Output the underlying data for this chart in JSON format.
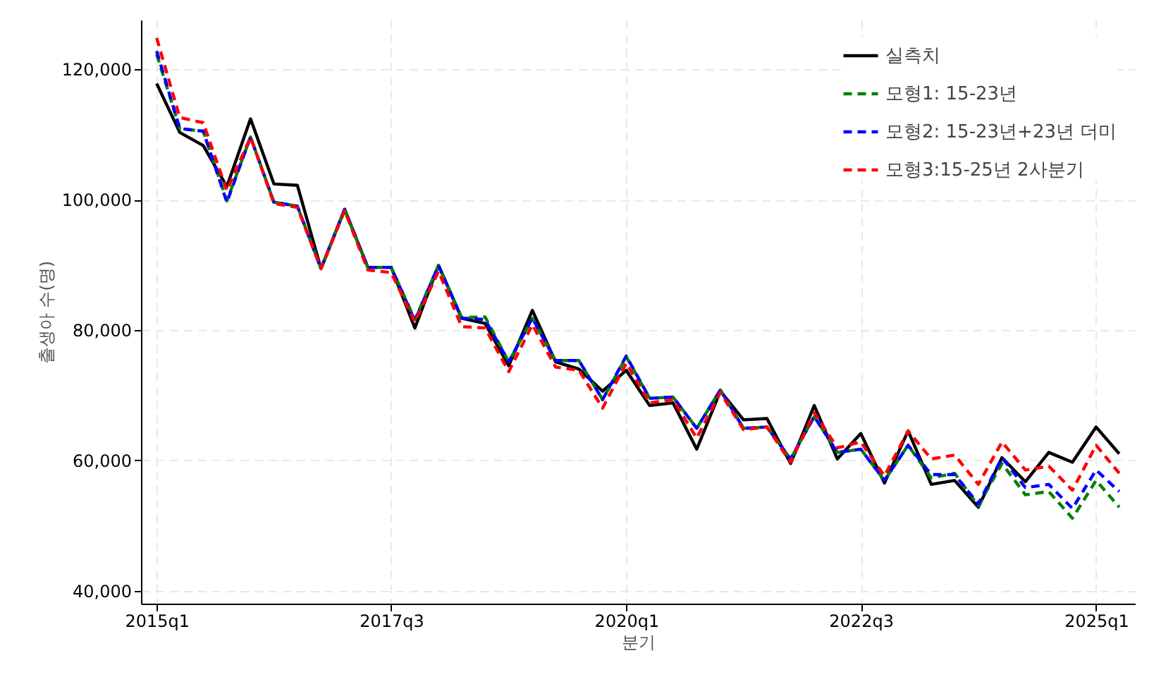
{
  "chart_data": {
    "type": "line",
    "xlabel": "분기",
    "ylabel": "출생아 수(명)",
    "x": [
      "2015-01",
      "2015-04",
      "2015-07",
      "2015-10",
      "2016-01",
      "2016-04",
      "2016-07",
      "2016-10",
      "2017-01",
      "2017-04",
      "2017-07",
      "2017-10",
      "2018-01",
      "2018-04",
      "2018-07",
      "2018-10",
      "2019-01",
      "2019-04",
      "2019-07",
      "2019-10",
      "2020-01",
      "2020-04",
      "2020-07",
      "2020-10",
      "2021-01",
      "2021-04",
      "2021-07",
      "2021-10",
      "2022-01",
      "2022-04",
      "2022-07",
      "2022-10",
      "2023-01",
      "2023-04",
      "2023-07",
      "2023-10",
      "2024-01",
      "2024-04",
      "2024-07",
      "2024-10",
      "2025-01",
      "2025-04"
    ],
    "series": [
      {
        "name": "실측치",
        "color": "#000000",
        "line_style": "solid",
        "values": [
          117800,
          110300,
          108300,
          102000,
          112400,
          102400,
          102200,
          89400,
          98500,
          89600,
          89600,
          80300,
          89900,
          81800,
          81000,
          74500,
          83000,
          75100,
          74000,
          70600,
          73800,
          68400,
          68800,
          61700,
          70600,
          66200,
          66400,
          59500,
          68400,
          60200,
          64100,
          56500,
          64500,
          56300,
          56900,
          52800,
          60400,
          56700,
          61200,
          59700,
          65100,
          61000
        ]
      },
      {
        "name": "모형1: 15-23년",
        "color": "#008000",
        "line_style": "dashed",
        "values": [
          122300,
          110900,
          110500,
          99800,
          109600,
          99600,
          99000,
          89400,
          98500,
          89600,
          89600,
          81600,
          89900,
          81900,
          82000,
          75100,
          81800,
          75300,
          75300,
          69300,
          75900,
          69500,
          69700,
          64900,
          70800,
          64900,
          65100,
          60200,
          66700,
          61200,
          61700,
          56900,
          62300,
          57300,
          58000,
          53000,
          59500,
          54700,
          55200,
          51100,
          56900,
          52800
        ]
      },
      {
        "name": "모형2: 15-23년+23년 더미",
        "color": "#0000ff",
        "line_style": "dashed",
        "values": [
          122800,
          110900,
          110500,
          99600,
          109600,
          99600,
          99000,
          89400,
          98500,
          89600,
          89600,
          81400,
          89900,
          81800,
          81600,
          75100,
          81800,
          75300,
          75300,
          69300,
          76000,
          69500,
          69700,
          64900,
          70800,
          64900,
          65100,
          60200,
          66700,
          61200,
          61700,
          56900,
          62300,
          57800,
          57800,
          53300,
          60400,
          55800,
          56300,
          52600,
          58500,
          55200
        ]
      },
      {
        "name": "모형3:15-25년 2사분기",
        "color": "#ff0000",
        "line_style": "dashed",
        "values": [
          124800,
          112600,
          111800,
          101400,
          109600,
          99400,
          98800,
          89400,
          98300,
          89200,
          88800,
          81200,
          89000,
          80500,
          80300,
          73600,
          80800,
          74300,
          73800,
          68000,
          74900,
          68800,
          69300,
          63400,
          70400,
          64700,
          65100,
          59700,
          67300,
          61900,
          62800,
          57600,
          64500,
          60200,
          60800,
          56300,
          62800,
          58500,
          59100,
          55400,
          62300,
          58000
        ]
      }
    ],
    "xlim": [
      "2014-11",
      "2025-06"
    ],
    "xticks": [
      {
        "value": "2015-01",
        "label": "2015q1"
      },
      {
        "value": "2017-07",
        "label": "2017q3"
      },
      {
        "value": "2020-01",
        "label": "2020q1"
      },
      {
        "value": "2022-07",
        "label": "2022q3"
      },
      {
        "value": "2025-01",
        "label": "2025q1"
      }
    ],
    "ylim": [
      38000,
      127600
    ],
    "yticks": [
      {
        "value": 40000,
        "label": "40,000"
      },
      {
        "value": 60000,
        "label": "60,000"
      },
      {
        "value": 80000,
        "label": "80,000"
      },
      {
        "value": 100000,
        "label": "100,000"
      },
      {
        "value": 120000,
        "label": "120,000"
      }
    ],
    "grid": true,
    "legend": "top right"
  }
}
